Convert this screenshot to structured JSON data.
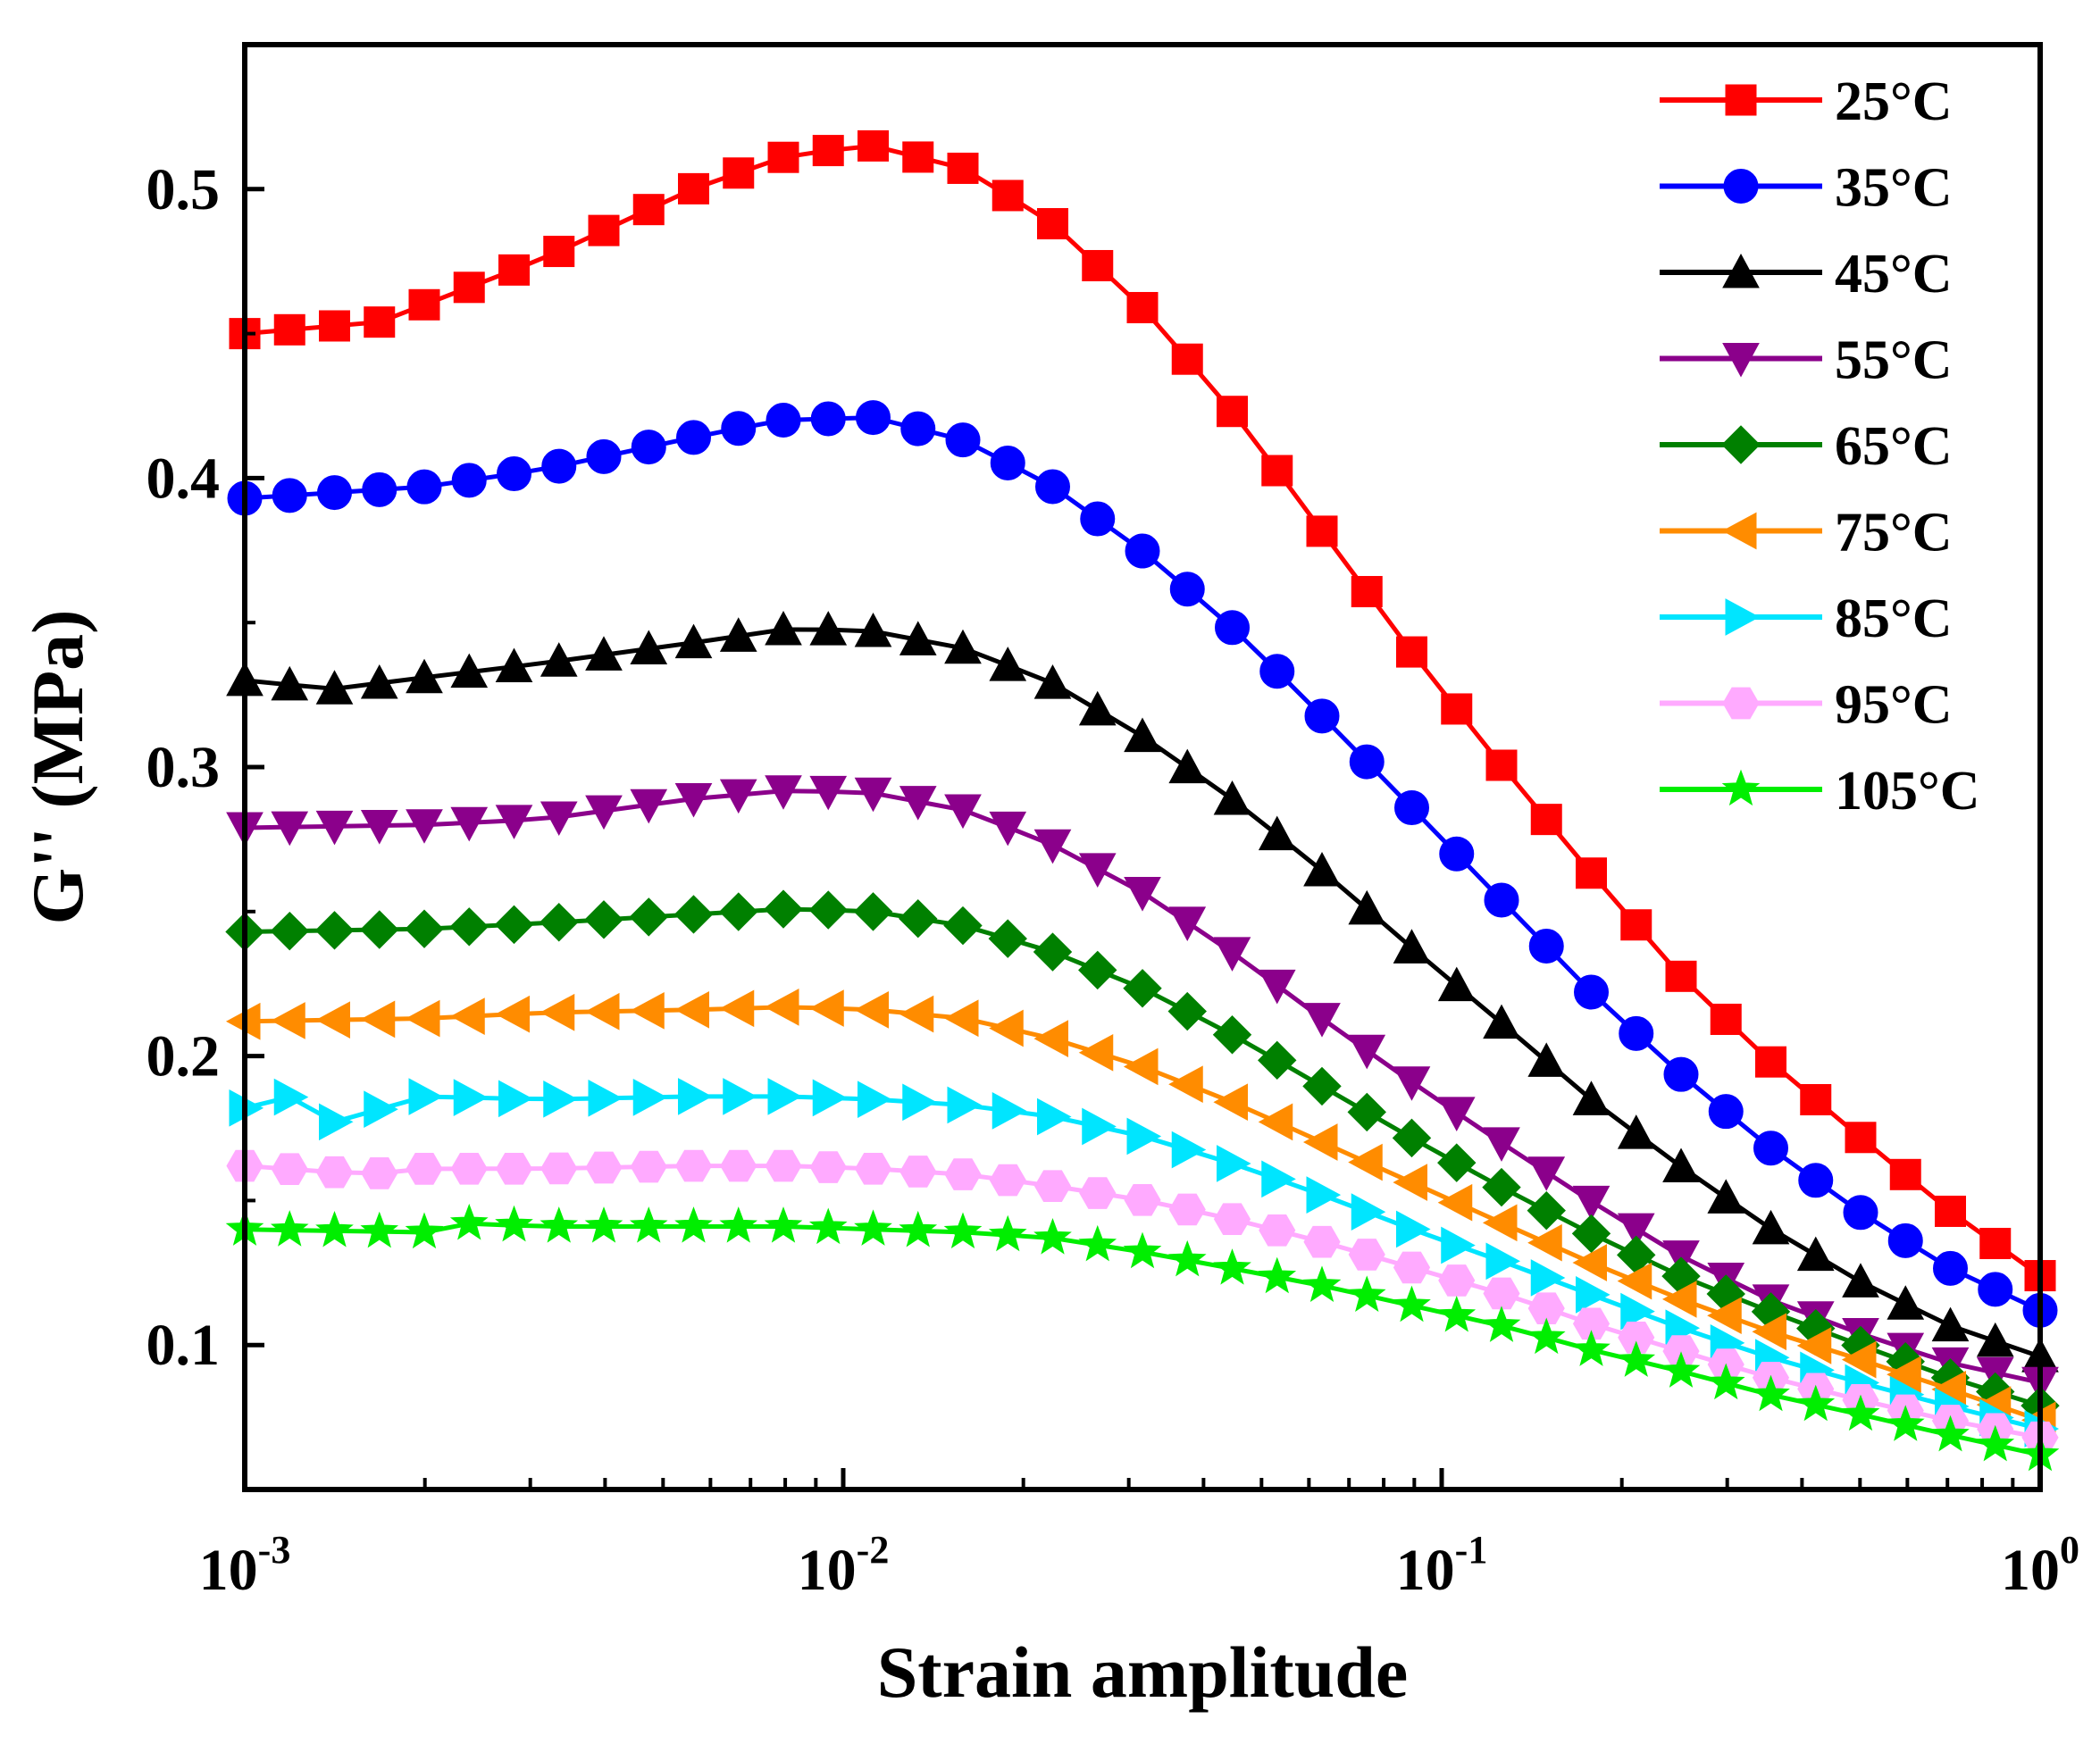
{
  "chart_data": {
    "type": "line",
    "title": "",
    "xlabel": "Strain amplitude",
    "ylabel": "G'' (MPa)",
    "xscale": "log",
    "xlim": [
      0.001,
      1
    ],
    "ylim": [
      0.05,
      0.55
    ],
    "x_ticks": [
      {
        "value": 0.001,
        "base": "10",
        "exp": "-3"
      },
      {
        "value": 0.01,
        "base": "10",
        "exp": "-2"
      },
      {
        "value": 0.1,
        "base": "10",
        "exp": "-1"
      },
      {
        "value": 1,
        "base": "10",
        "exp": "0"
      }
    ],
    "y_ticks": [
      {
        "value": 0.1,
        "label": "0.1"
      },
      {
        "value": 0.2,
        "label": "0.2"
      },
      {
        "value": 0.3,
        "label": "0.3"
      },
      {
        "value": 0.4,
        "label": "0.4"
      },
      {
        "value": 0.5,
        "label": "0.5"
      }
    ],
    "legend_position": "top-right",
    "series": [
      {
        "name": "25°C",
        "color": "#ff0000",
        "marker": "square",
        "anchors": [
          [
            0.001,
            0.45
          ],
          [
            0.00168,
            0.454
          ],
          [
            0.00316,
            0.476
          ],
          [
            0.0056,
            0.5
          ],
          [
            0.0082,
            0.512
          ],
          [
            0.0112,
            0.515
          ],
          [
            0.016,
            0.507
          ],
          [
            0.0224,
            0.488
          ],
          [
            0.032,
            0.458
          ],
          [
            0.046,
            0.42
          ],
          [
            0.065,
            0.378
          ],
          [
            0.092,
            0.336
          ],
          [
            0.13,
            0.297
          ],
          [
            0.18,
            0.262
          ],
          [
            0.25,
            0.228
          ],
          [
            0.35,
            0.199
          ],
          [
            0.5,
            0.172
          ],
          [
            0.7,
            0.147
          ],
          [
            1.0,
            0.124
          ]
        ]
      },
      {
        "name": "35°C",
        "color": "#0000ff",
        "marker": "circle",
        "anchors": [
          [
            0.001,
            0.393
          ],
          [
            0.002,
            0.397
          ],
          [
            0.00316,
            0.403
          ],
          [
            0.0056,
            0.414
          ],
          [
            0.0078,
            0.42
          ],
          [
            0.0112,
            0.421
          ],
          [
            0.016,
            0.413
          ],
          [
            0.0224,
            0.397
          ],
          [
            0.032,
            0.374
          ],
          [
            0.046,
            0.346
          ],
          [
            0.065,
            0.315
          ],
          [
            0.092,
            0.283
          ],
          [
            0.13,
            0.251
          ],
          [
            0.18,
            0.221
          ],
          [
            0.25,
            0.194
          ],
          [
            0.35,
            0.169
          ],
          [
            0.5,
            0.146
          ],
          [
            0.7,
            0.127
          ],
          [
            1.0,
            0.112
          ]
        ]
      },
      {
        "name": "45°C",
        "color": "#000000",
        "marker": "triangle-up",
        "anchors": [
          [
            0.001,
            0.33
          ],
          [
            0.0014,
            0.327
          ],
          [
            0.002,
            0.331
          ],
          [
            0.00316,
            0.336
          ],
          [
            0.0056,
            0.343
          ],
          [
            0.0082,
            0.348
          ],
          [
            0.0112,
            0.347
          ],
          [
            0.016,
            0.341
          ],
          [
            0.0224,
            0.329
          ],
          [
            0.032,
            0.31
          ],
          [
            0.046,
            0.287
          ],
          [
            0.065,
            0.262
          ],
          [
            0.092,
            0.235
          ],
          [
            0.13,
            0.209
          ],
          [
            0.18,
            0.184
          ],
          [
            0.25,
            0.162
          ],
          [
            0.35,
            0.141
          ],
          [
            0.5,
            0.122
          ],
          [
            0.7,
            0.107
          ],
          [
            1.0,
            0.096
          ]
        ]
      },
      {
        "name": "55°C",
        "color": "#8b008b",
        "marker": "triangle-down",
        "anchors": [
          [
            0.001,
            0.279
          ],
          [
            0.002,
            0.28
          ],
          [
            0.00316,
            0.282
          ],
          [
            0.0056,
            0.289
          ],
          [
            0.0082,
            0.292
          ],
          [
            0.0112,
            0.291
          ],
          [
            0.016,
            0.285
          ],
          [
            0.0224,
            0.273
          ],
          [
            0.032,
            0.256
          ],
          [
            0.046,
            0.234
          ],
          [
            0.065,
            0.211
          ],
          [
            0.092,
            0.189
          ],
          [
            0.13,
            0.168
          ],
          [
            0.18,
            0.149
          ],
          [
            0.25,
            0.131
          ],
          [
            0.35,
            0.116
          ],
          [
            0.5,
            0.104
          ],
          [
            0.7,
            0.094
          ],
          [
            1.0,
            0.087
          ]
        ]
      },
      {
        "name": "65°C",
        "color": "#008000",
        "marker": "diamond",
        "anchors": [
          [
            0.001,
            0.243
          ],
          [
            0.002,
            0.244
          ],
          [
            0.00316,
            0.246
          ],
          [
            0.0056,
            0.249
          ],
          [
            0.0082,
            0.251
          ],
          [
            0.0112,
            0.25
          ],
          [
            0.016,
            0.245
          ],
          [
            0.0224,
            0.236
          ],
          [
            0.032,
            0.223
          ],
          [
            0.046,
            0.206
          ],
          [
            0.065,
            0.188
          ],
          [
            0.092,
            0.17
          ],
          [
            0.13,
            0.153
          ],
          [
            0.18,
            0.138
          ],
          [
            0.25,
            0.124
          ],
          [
            0.35,
            0.112
          ],
          [
            0.5,
            0.1
          ],
          [
            0.7,
            0.089
          ],
          [
            1.0,
            0.079
          ]
        ]
      },
      {
        "name": "75°C",
        "color": "#ff8c00",
        "marker": "triangle-left",
        "anchors": [
          [
            0.001,
            0.212
          ],
          [
            0.002,
            0.213
          ],
          [
            0.00316,
            0.215
          ],
          [
            0.0056,
            0.216
          ],
          [
            0.0082,
            0.217
          ],
          [
            0.0112,
            0.216
          ],
          [
            0.016,
            0.213
          ],
          [
            0.0224,
            0.206
          ],
          [
            0.032,
            0.196
          ],
          [
            0.046,
            0.183
          ],
          [
            0.065,
            0.169
          ],
          [
            0.092,
            0.155
          ],
          [
            0.13,
            0.141
          ],
          [
            0.18,
            0.128
          ],
          [
            0.25,
            0.116
          ],
          [
            0.35,
            0.105
          ],
          [
            0.5,
            0.095
          ],
          [
            0.7,
            0.085
          ],
          [
            1.0,
            0.074
          ]
        ]
      },
      {
        "name": "85°C",
        "color": "#00e5ff",
        "marker": "triangle-right",
        "anchors": [
          [
            0.001,
            0.182
          ],
          [
            0.0012,
            0.186
          ],
          [
            0.0014,
            0.177
          ],
          [
            0.002,
            0.186
          ],
          [
            0.00316,
            0.185
          ],
          [
            0.0056,
            0.186
          ],
          [
            0.0082,
            0.186
          ],
          [
            0.0112,
            0.185
          ],
          [
            0.016,
            0.183
          ],
          [
            0.0224,
            0.179
          ],
          [
            0.032,
            0.172
          ],
          [
            0.046,
            0.162
          ],
          [
            0.065,
            0.151
          ],
          [
            0.092,
            0.139
          ],
          [
            0.13,
            0.128
          ],
          [
            0.18,
            0.117
          ],
          [
            0.25,
            0.106
          ],
          [
            0.35,
            0.096
          ],
          [
            0.5,
            0.087
          ],
          [
            0.7,
            0.079
          ],
          [
            1.0,
            0.071
          ]
        ]
      },
      {
        "name": "95°C",
        "color": "#ffaaff",
        "marker": "hexagon",
        "anchors": [
          [
            0.001,
            0.162
          ],
          [
            0.0016,
            0.159
          ],
          [
            0.002,
            0.161
          ],
          [
            0.00316,
            0.161
          ],
          [
            0.0056,
            0.162
          ],
          [
            0.0082,
            0.162
          ],
          [
            0.0112,
            0.161
          ],
          [
            0.016,
            0.159
          ],
          [
            0.0224,
            0.155
          ],
          [
            0.032,
            0.15
          ],
          [
            0.046,
            0.143
          ],
          [
            0.065,
            0.135
          ],
          [
            0.092,
            0.126
          ],
          [
            0.13,
            0.117
          ],
          [
            0.18,
            0.107
          ],
          [
            0.25,
            0.098
          ],
          [
            0.35,
            0.089
          ],
          [
            0.5,
            0.081
          ],
          [
            0.7,
            0.074
          ],
          [
            1.0,
            0.068
          ]
        ]
      },
      {
        "name": "105°C",
        "color": "#00ee00",
        "marker": "star",
        "anchors": [
          [
            0.001,
            0.14
          ],
          [
            0.002,
            0.139
          ],
          [
            0.00237,
            0.142
          ],
          [
            0.00316,
            0.141
          ],
          [
            0.0056,
            0.141
          ],
          [
            0.0082,
            0.141
          ],
          [
            0.0112,
            0.14
          ],
          [
            0.016,
            0.139
          ],
          [
            0.0224,
            0.137
          ],
          [
            0.032,
            0.132
          ],
          [
            0.046,
            0.126
          ],
          [
            0.065,
            0.12
          ],
          [
            0.092,
            0.113
          ],
          [
            0.13,
            0.106
          ],
          [
            0.18,
            0.098
          ],
          [
            0.25,
            0.091
          ],
          [
            0.35,
            0.083
          ],
          [
            0.5,
            0.076
          ],
          [
            0.7,
            0.069
          ],
          [
            1.0,
            0.062
          ]
        ]
      }
    ]
  }
}
